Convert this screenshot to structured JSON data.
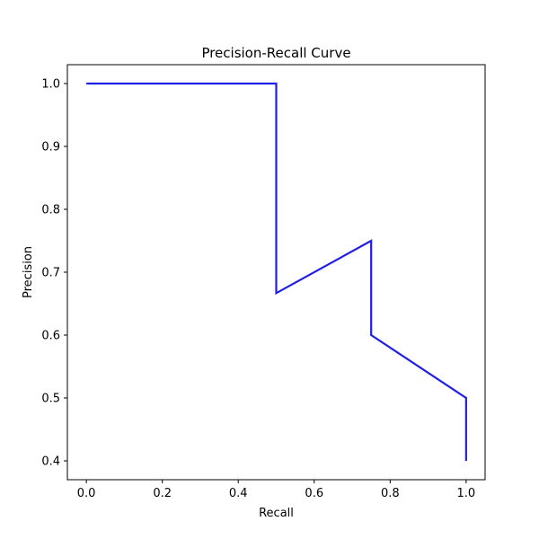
{
  "chart_data": {
    "type": "line",
    "title": "Precision-Recall Curve",
    "xlabel": "Recall",
    "ylabel": "Precision",
    "xlim": [
      -0.05,
      1.05
    ],
    "ylim": [
      0.37,
      1.03
    ],
    "xticks": [
      0.0,
      0.2,
      0.4,
      0.6,
      0.8,
      1.0
    ],
    "xtick_labels": [
      "0.0",
      "0.2",
      "0.4",
      "0.6",
      "0.8",
      "1.0"
    ],
    "yticks": [
      0.4,
      0.5,
      0.6,
      0.7,
      0.8,
      0.9,
      1.0
    ],
    "ytick_labels": [
      "0.4",
      "0.5",
      "0.6",
      "0.7",
      "0.8",
      "0.9",
      "1.0"
    ],
    "grid": false,
    "legend": "none",
    "series": [
      {
        "color": "#1f1fe6",
        "x": [
          0.0,
          0.5,
          0.5,
          0.75,
          0.75,
          1.0,
          1.0
        ],
        "y": [
          1.0,
          1.0,
          0.6667,
          0.75,
          0.6,
          0.5,
          0.4
        ]
      }
    ]
  }
}
